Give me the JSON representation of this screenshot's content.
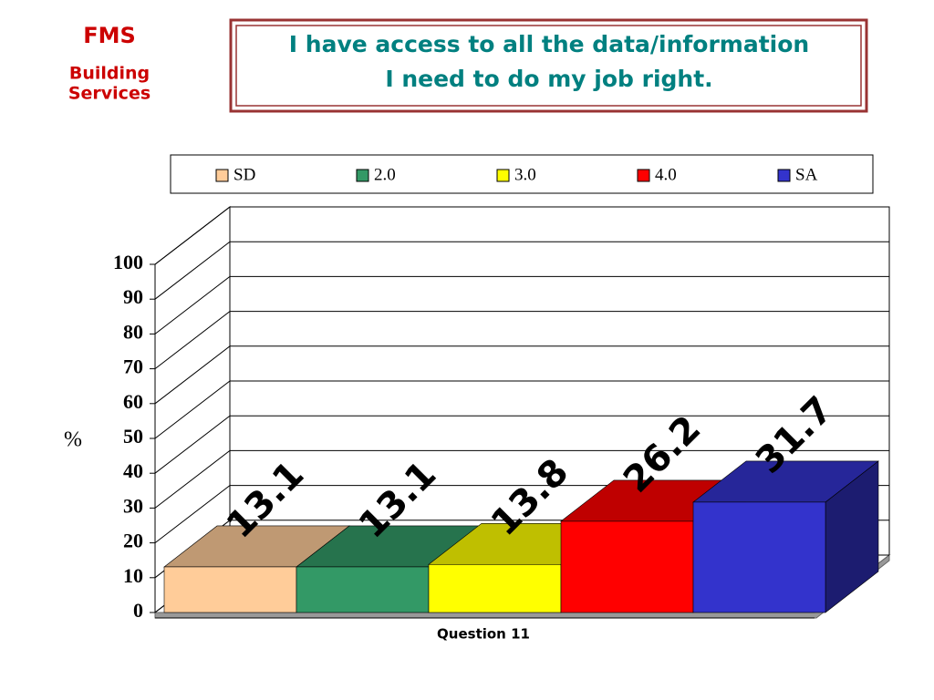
{
  "branding": {
    "name": "FMS",
    "lines": [
      "Building",
      "Services"
    ]
  },
  "chart_data": {
    "type": "bar",
    "title": [
      "I have access to all the data/information",
      "I need to do my job right."
    ],
    "categories": [
      "Question 11"
    ],
    "x_label": "Question 11",
    "y_label": "%",
    "series": [
      {
        "name": "SD",
        "color": "#ffcc99",
        "values": [
          13.1
        ]
      },
      {
        "name": "2.0",
        "color": "#339966",
        "values": [
          13.1
        ]
      },
      {
        "name": "3.0",
        "color": "#ffff00",
        "values": [
          13.8
        ]
      },
      {
        "name": "4.0",
        "color": "#ff0000",
        "values": [
          26.2
        ]
      },
      {
        "name": "SA",
        "color": "#3333cc",
        "values": [
          31.7
        ]
      }
    ],
    "ylim": [
      0,
      100
    ],
    "yticks": [
      0,
      10,
      20,
      30,
      40,
      50,
      60,
      70,
      80,
      90,
      100
    ],
    "grid": true,
    "legend": "top"
  }
}
